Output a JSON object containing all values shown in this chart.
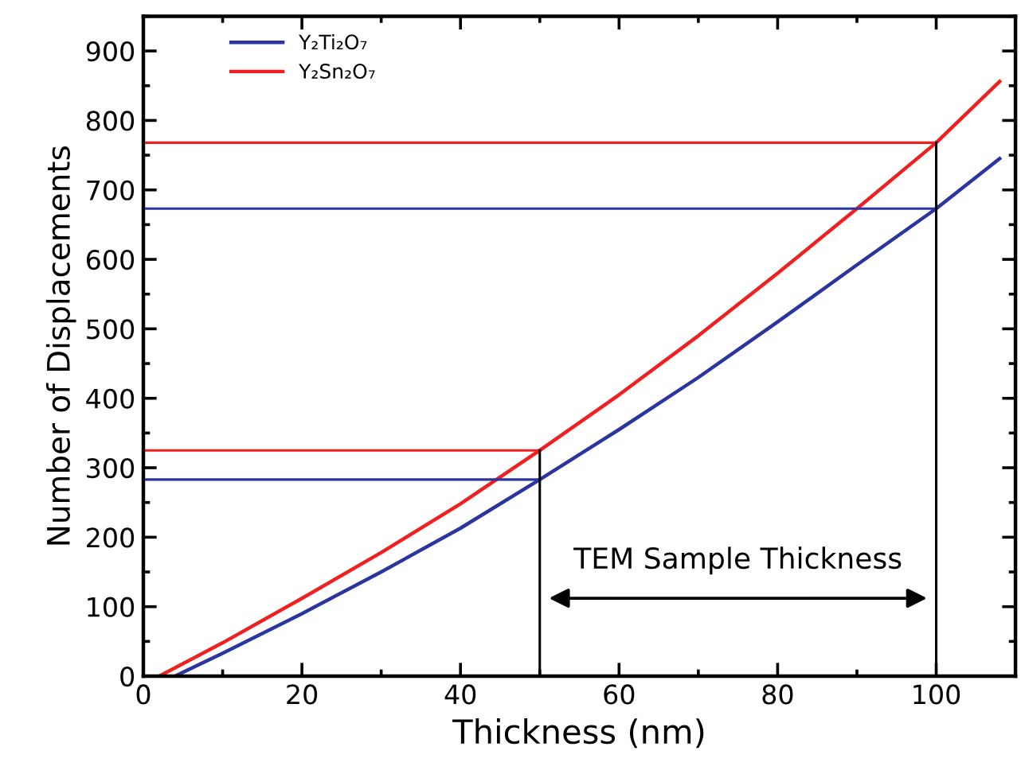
{
  "chart_data": {
    "type": "line",
    "xlabel": "Thickness (nm)",
    "ylabel": "Number of Displacements",
    "xlim": [
      0,
      110
    ],
    "xticks": [
      0,
      20,
      40,
      60,
      80,
      100
    ],
    "ylim": [
      0,
      950
    ],
    "yticks": [
      0,
      100,
      200,
      300,
      400,
      500,
      600,
      700,
      800,
      900
    ],
    "legend": "top left",
    "grid": false,
    "marker": "none",
    "line_style": "solid",
    "series": [
      {
        "name": "Y₂Ti₂O₇",
        "color": "#2b35a0",
        "x": [
          4,
          10,
          20,
          30,
          40,
          50,
          60,
          70,
          80,
          90,
          100,
          108
        ],
        "values": [
          0,
          33,
          90,
          150,
          213,
          283,
          355,
          430,
          510,
          592,
          673,
          745
        ]
      },
      {
        "name": "Y₂Sn₂O₇",
        "color": "#f02020",
        "x": [
          2,
          10,
          20,
          30,
          40,
          50,
          60,
          70,
          80,
          90,
          100,
          108
        ],
        "values": [
          0,
          48,
          112,
          178,
          248,
          325,
          405,
          490,
          580,
          673,
          768,
          856
        ]
      },
      {
        "color": "#2b35a0",
        "x": [
          0,
          100
        ],
        "values": [
          673,
          673
        ]
      },
      {
        "color": "#f02020",
        "x": [
          0,
          100
        ],
        "values": [
          768,
          768
        ]
      },
      {
        "color": "#2b35a0",
        "x": [
          0,
          50
        ],
        "values": [
          283,
          283
        ]
      },
      {
        "color": "#f02020",
        "x": [
          0,
          50
        ],
        "values": [
          325,
          325
        ]
      }
    ],
    "ref_lines": [
      {
        "axis": "x",
        "value": 50,
        "color": "#000000"
      },
      {
        "axis": "x",
        "value": 100,
        "color": "#000000"
      }
    ],
    "annotations": [
      "TEM Sample Thickness"
    ]
  }
}
